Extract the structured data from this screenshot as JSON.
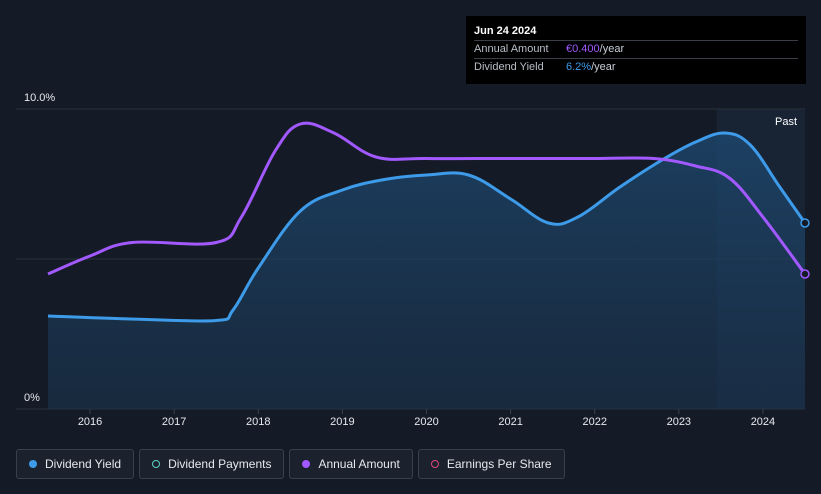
{
  "tooltip": {
    "date": "Jun 24 2024",
    "rows": [
      {
        "label": "Annual Amount",
        "value": "€0.400",
        "unit": "/year"
      },
      {
        "label": "Dividend Yield",
        "value": "6.2%",
        "unit": "/year"
      }
    ]
  },
  "past_label": "Past",
  "legend": [
    {
      "label": "Dividend Yield",
      "color": "#3d9be9",
      "filled": true
    },
    {
      "label": "Dividend Payments",
      "color": "#5fd3c6",
      "filled": false
    },
    {
      "label": "Annual Amount",
      "color": "#a259ff",
      "filled": true
    },
    {
      "label": "Earnings Per Share",
      "color": "#e0457b",
      "filled": false
    }
  ],
  "colors": {
    "yield": "#3d9be9",
    "amount": "#a259ff",
    "grid": "#2a303b",
    "past_band": "#1b2a3d"
  },
  "chart_data": {
    "type": "line",
    "ylim": [
      0,
      10
    ],
    "y_tick_labels": [
      "0%",
      "10.0%"
    ],
    "x_tick_labels": [
      "2016",
      "2017",
      "2018",
      "2019",
      "2020",
      "2021",
      "2022",
      "2023",
      "2024"
    ],
    "xlim": [
      2015.5,
      2024.5
    ],
    "past_start": 2023.45,
    "series": [
      {
        "name": "Dividend Yield",
        "unit": "%",
        "points": [
          [
            2015.5,
            3.1
          ],
          [
            2016.5,
            3.0
          ],
          [
            2017.5,
            2.95
          ],
          [
            2017.7,
            3.3
          ],
          [
            2018.0,
            4.7
          ],
          [
            2018.5,
            6.6
          ],
          [
            2019.0,
            7.3
          ],
          [
            2019.5,
            7.65
          ],
          [
            2020.0,
            7.8
          ],
          [
            2020.5,
            7.8
          ],
          [
            2021.0,
            7.0
          ],
          [
            2021.45,
            6.2
          ],
          [
            2021.8,
            6.4
          ],
          [
            2022.3,
            7.4
          ],
          [
            2022.8,
            8.3
          ],
          [
            2023.2,
            8.9
          ],
          [
            2023.55,
            9.2
          ],
          [
            2023.85,
            8.8
          ],
          [
            2024.2,
            7.4
          ],
          [
            2024.5,
            6.2
          ]
        ]
      },
      {
        "name": "Annual Amount",
        "unit": "€/year",
        "points": [
          [
            2015.5,
            4.5
          ],
          [
            2016.0,
            5.1
          ],
          [
            2016.5,
            5.55
          ],
          [
            2017.5,
            5.55
          ],
          [
            2017.8,
            6.4
          ],
          [
            2018.2,
            8.6
          ],
          [
            2018.5,
            9.5
          ],
          [
            2018.9,
            9.2
          ],
          [
            2019.4,
            8.4
          ],
          [
            2020.0,
            8.35
          ],
          [
            2021.0,
            8.35
          ],
          [
            2022.0,
            8.35
          ],
          [
            2022.7,
            8.35
          ],
          [
            2023.2,
            8.1
          ],
          [
            2023.6,
            7.7
          ],
          [
            2024.0,
            6.4
          ],
          [
            2024.5,
            4.5
          ]
        ]
      }
    ]
  }
}
